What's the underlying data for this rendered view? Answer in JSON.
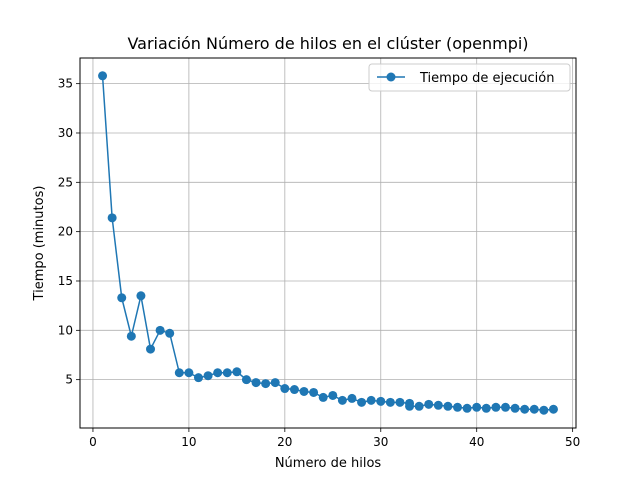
{
  "chart_data": {
    "type": "line",
    "title": "Variación Número de hilos en el clúster (openmpi)",
    "xlabel": "Número de hilos",
    "ylabel": "Tiempo (minutos)",
    "xlim": [
      -1.35,
      50.35
    ],
    "ylim": [
      0.1,
      37.6
    ],
    "xticks": [
      0,
      10,
      20,
      30,
      40,
      50
    ],
    "yticks": [
      5,
      10,
      15,
      20,
      25,
      30,
      35
    ],
    "grid": true,
    "legend_position": "top-right",
    "series": [
      {
        "name": "Tiempo de ejecución",
        "color": "#1f77b4",
        "marker": "circle",
        "x": [
          1,
          2,
          3,
          4,
          5,
          6,
          7,
          8,
          9,
          10,
          11,
          12,
          13,
          14,
          15,
          16,
          17,
          18,
          19,
          20,
          21,
          22,
          23,
          24,
          25,
          26,
          27,
          28,
          29,
          30,
          31,
          32,
          33,
          33,
          34,
          35,
          36,
          37,
          38,
          39,
          40,
          41,
          42,
          43,
          44,
          45,
          46,
          47,
          48
        ],
        "y": [
          35.8,
          21.4,
          13.3,
          9.4,
          13.5,
          8.1,
          10.0,
          9.7,
          5.7,
          5.7,
          5.2,
          5.4,
          5.7,
          5.7,
          5.8,
          5.0,
          4.7,
          4.6,
          4.7,
          4.1,
          4.0,
          3.8,
          3.7,
          3.2,
          3.4,
          2.9,
          3.1,
          2.7,
          2.9,
          2.8,
          2.7,
          2.7,
          2.6,
          2.3,
          2.3,
          2.5,
          2.4,
          2.3,
          2.2,
          2.1,
          2.2,
          2.1,
          2.2,
          2.2,
          2.1,
          2.0,
          2.0,
          1.9,
          2.0
        ]
      }
    ]
  }
}
